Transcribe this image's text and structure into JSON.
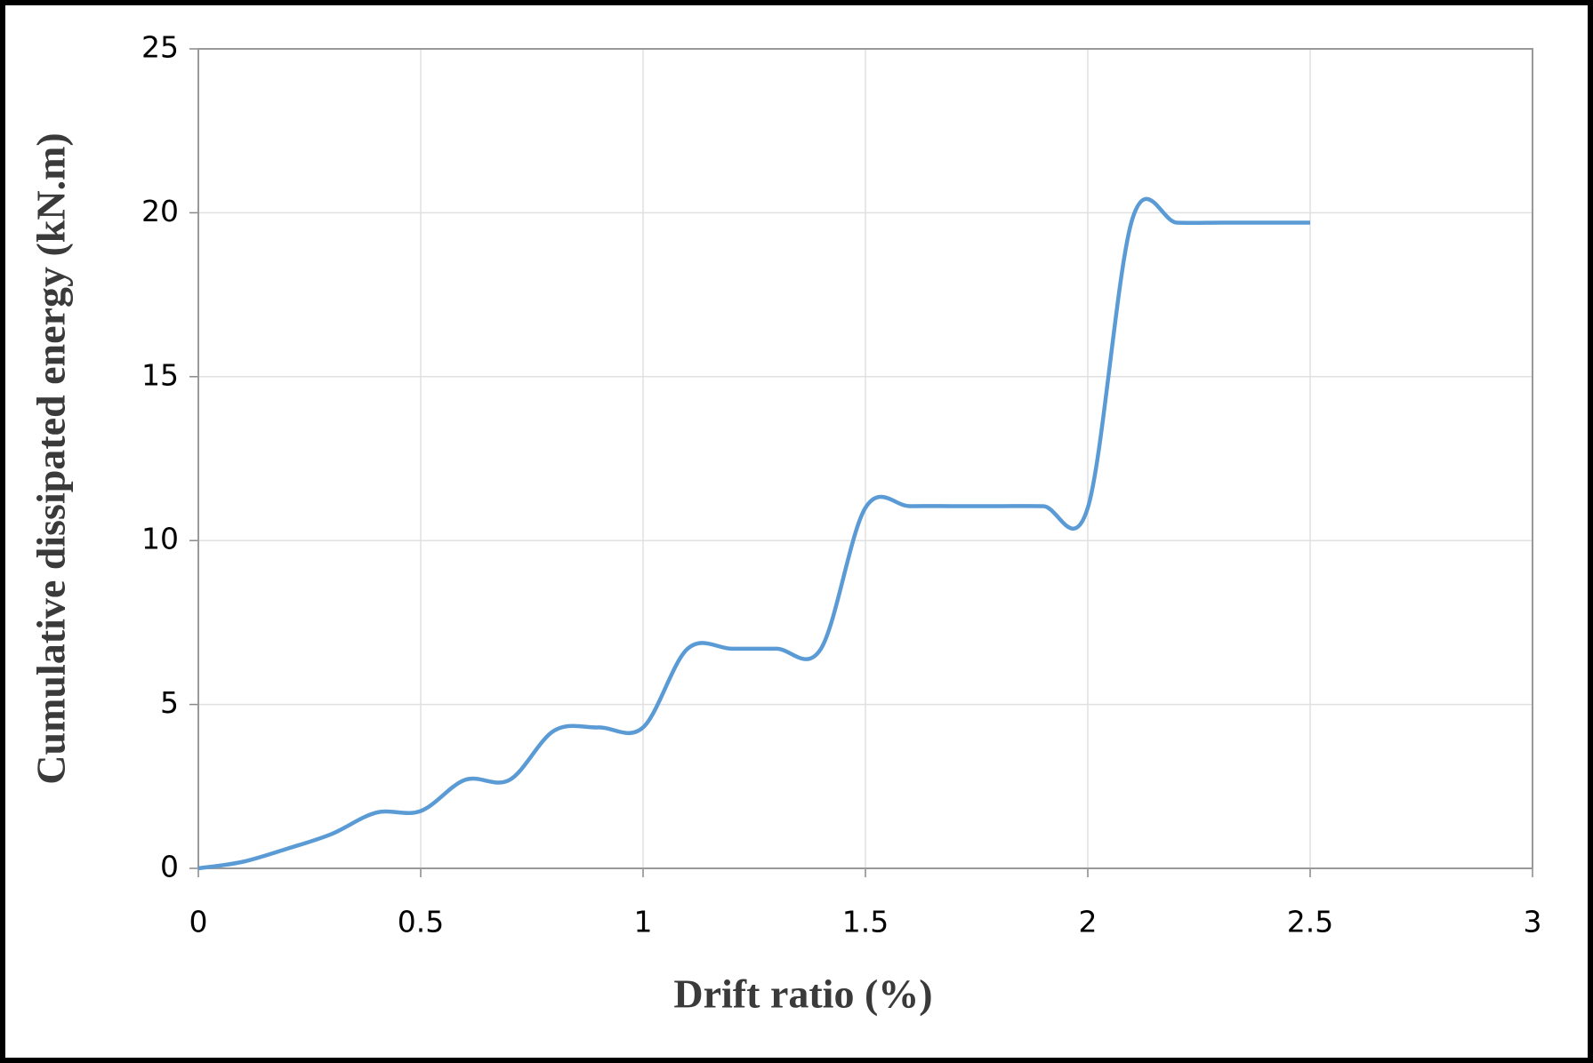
{
  "chart_data": {
    "type": "line",
    "x_label": "Drift ratio (%)",
    "y_label": "Cumulative dissipated energy  (kN.m)",
    "x": [
      0,
      0.1,
      0.2,
      0.3,
      0.4,
      0.5,
      0.6,
      0.7,
      0.8,
      0.9,
      1.0,
      1.1,
      1.2,
      1.3,
      1.4,
      1.5,
      1.6,
      1.7,
      1.8,
      1.9,
      2.0,
      2.1,
      2.2,
      2.3,
      2.4,
      2.5
    ],
    "series": [
      {
        "color": "#5b9bd5",
        "values": [
          0,
          0.2,
          0.6,
          1.05,
          1.7,
          1.75,
          2.7,
          2.7,
          4.2,
          4.3,
          4.3,
          6.7,
          6.7,
          6.7,
          6.7,
          11.0,
          11.05,
          11.05,
          11.05,
          11.05,
          11.0,
          19.8,
          19.7,
          19.7,
          19.7,
          19.7
        ]
      }
    ],
    "xlim": [
      0,
      3
    ],
    "xticks": [
      0,
      0.5,
      1,
      1.5,
      2,
      2.5,
      3
    ],
    "ylim": [
      0,
      25
    ],
    "yticks": [
      0,
      5,
      10,
      15,
      20,
      25
    ],
    "grid": true
  }
}
